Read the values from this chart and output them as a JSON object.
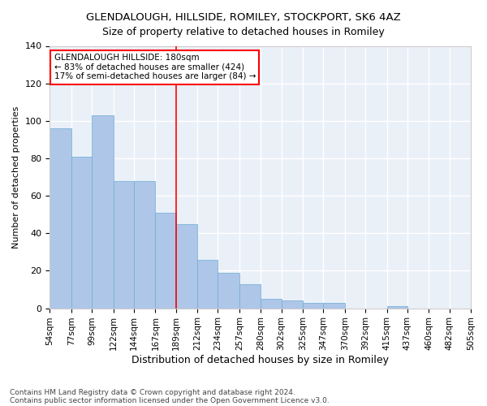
{
  "title": "GLENDALOUGH, HILLSIDE, ROMILEY, STOCKPORT, SK6 4AZ",
  "subtitle": "Size of property relative to detached houses in Romiley",
  "xlabel": "Distribution of detached houses by size in Romiley",
  "ylabel": "Number of detached properties",
  "categories": [
    "54sqm",
    "77sqm",
    "99sqm",
    "122sqm",
    "144sqm",
    "167sqm",
    "189sqm",
    "212sqm",
    "234sqm",
    "257sqm",
    "280sqm",
    "302sqm",
    "325sqm",
    "347sqm",
    "370sqm",
    "392sqm",
    "415sqm",
    "437sqm",
    "460sqm",
    "482sqm",
    "505sqm"
  ],
  "hist_edges": [
    54,
    77,
    99,
    122,
    144,
    167,
    189,
    212,
    234,
    257,
    280,
    302,
    325,
    347,
    370,
    392,
    415,
    437,
    460,
    482,
    505
  ],
  "hist_vals": [
    96,
    81,
    103,
    68,
    68,
    51,
    45,
    26,
    19,
    13,
    5,
    4,
    3,
    3,
    0,
    0,
    1,
    0,
    0,
    0
  ],
  "bar_color": "#aec6e8",
  "bar_edge_color": "#6badd6",
  "vline_x": 189,
  "vline_color": "red",
  "annotation_text": "GLENDALOUGH HILLSIDE: 180sqm\n← 83% of detached houses are smaller (424)\n17% of semi-detached houses are larger (84) →",
  "annotation_box_color": "white",
  "annotation_box_edge_color": "red",
  "ylim": [
    0,
    140
  ],
  "yticks": [
    0,
    20,
    40,
    60,
    80,
    100,
    120,
    140
  ],
  "bg_color": "#eaf0f8",
  "grid_color": "white",
  "footer1": "Contains HM Land Registry data © Crown copyright and database right 2024.",
  "footer2": "Contains public sector information licensed under the Open Government Licence v3.0."
}
